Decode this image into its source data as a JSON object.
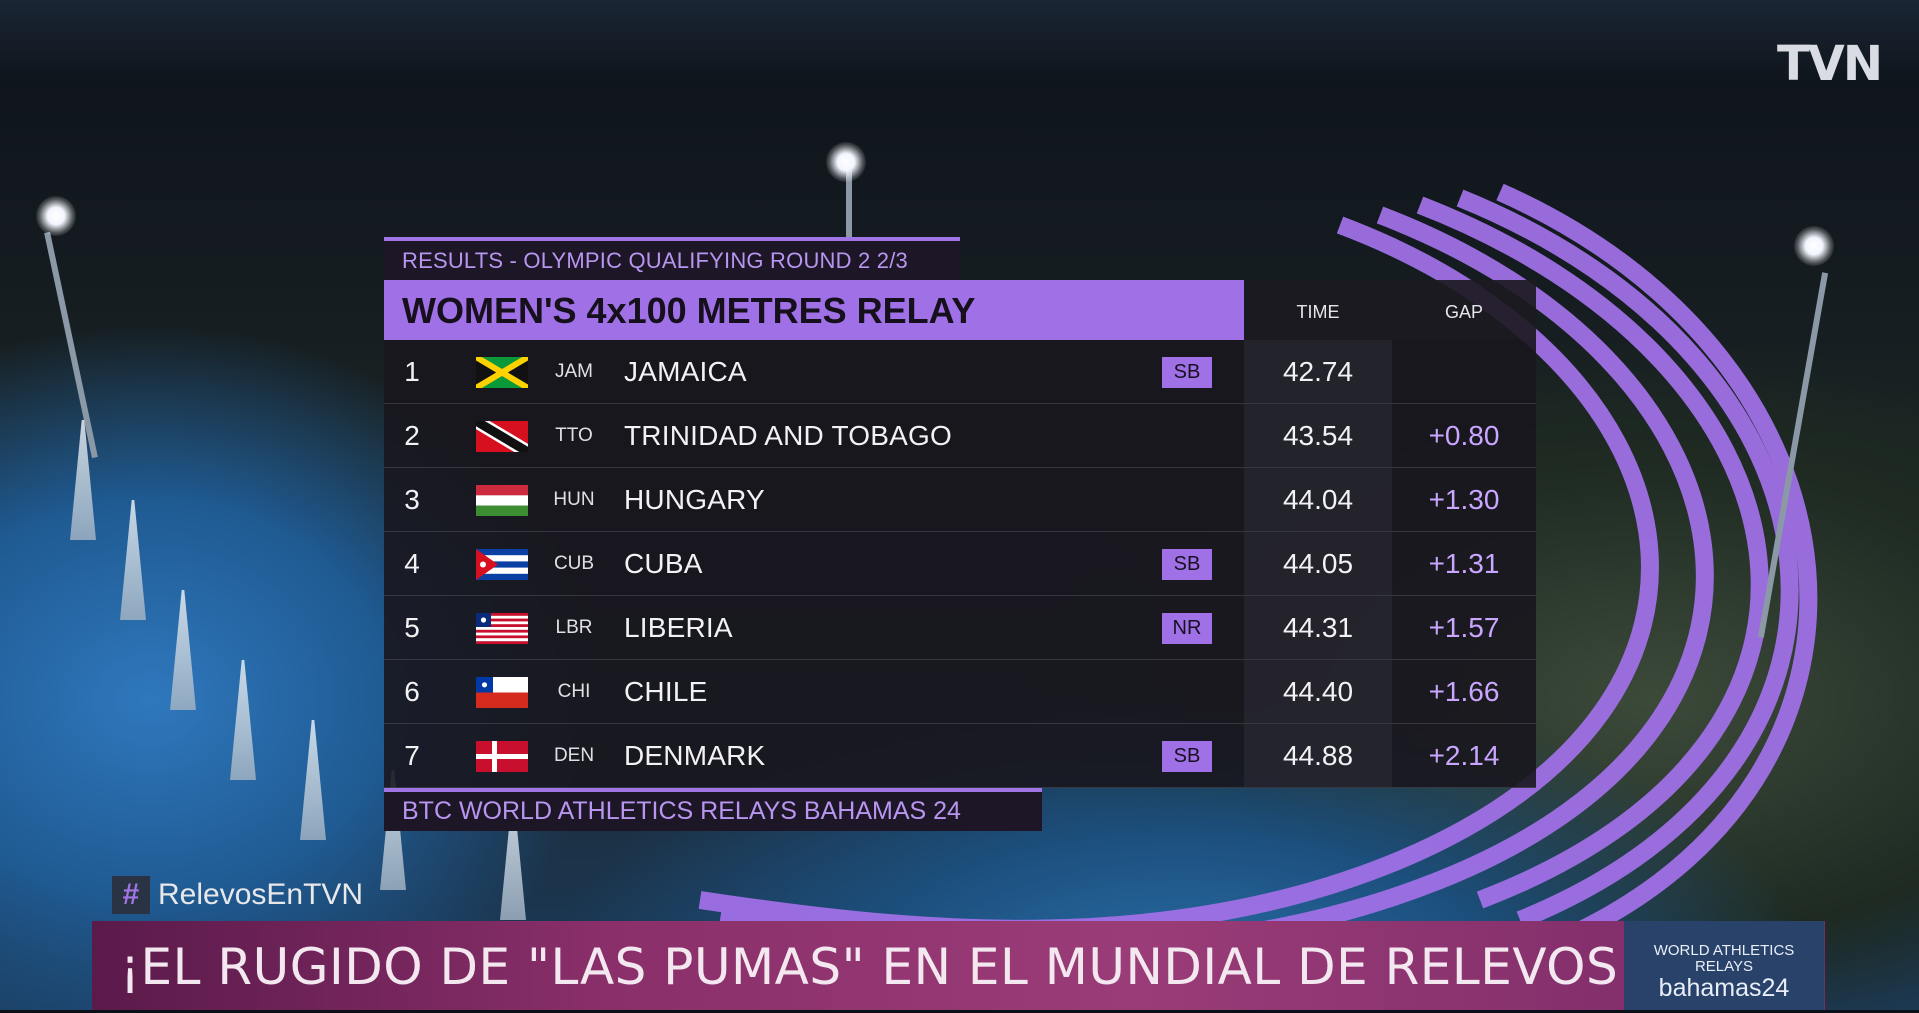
{
  "broadcaster": {
    "logo_text": "TVN"
  },
  "results_board": {
    "header": "RESULTS - OLYMPIC QUALIFYING ROUND 2  2/3",
    "event_title": "WOMEN'S 4x100 METRES RELAY",
    "columns": {
      "time": "TIME",
      "gap": "GAP"
    },
    "rows": [
      {
        "rank": "1",
        "code": "JAM",
        "country": "JAMAICA",
        "badge": "SB",
        "time": "42.74",
        "gap": "",
        "flag": "jamaica-flag-icon"
      },
      {
        "rank": "2",
        "code": "TTO",
        "country": "TRINIDAD AND TOBAGO",
        "badge": "",
        "time": "43.54",
        "gap": "+0.80",
        "flag": "trinidad-flag-icon"
      },
      {
        "rank": "3",
        "code": "HUN",
        "country": "HUNGARY",
        "badge": "",
        "time": "44.04",
        "gap": "+1.30",
        "flag": "hungary-flag-icon"
      },
      {
        "rank": "4",
        "code": "CUB",
        "country": "CUBA",
        "badge": "SB",
        "time": "44.05",
        "gap": "+1.31",
        "flag": "cuba-flag-icon"
      },
      {
        "rank": "5",
        "code": "LBR",
        "country": "LIBERIA",
        "badge": "NR",
        "time": "44.31",
        "gap": "+1.57",
        "flag": "liberia-flag-icon"
      },
      {
        "rank": "6",
        "code": "CHI",
        "country": "CHILE",
        "badge": "",
        "time": "44.40",
        "gap": "+1.66",
        "flag": "chile-flag-icon"
      },
      {
        "rank": "7",
        "code": "DEN",
        "country": "DENMARK",
        "badge": "SB",
        "time": "44.88",
        "gap": "+2.14",
        "flag": "denmark-flag-icon"
      }
    ],
    "footer": "BTC WORLD ATHLETICS RELAYS BAHAMAS 24"
  },
  "hashtag": {
    "symbol": "#",
    "text": "RelevosEnTVN"
  },
  "ticker": {
    "headline": "¡EL RUGIDO DE \"LAS PUMAS\" EN EL MUNDIAL DE RELEVOS!"
  },
  "event_logo": {
    "line1": "WORLD ATHLETICS",
    "line2": "RELAYS",
    "line3": "bahamas24"
  },
  "colors": {
    "accent": "#a070e6",
    "board_bg": "#18161e",
    "ticker_bg": "#8a2f6a",
    "event_logo_bg": "#29426a"
  }
}
